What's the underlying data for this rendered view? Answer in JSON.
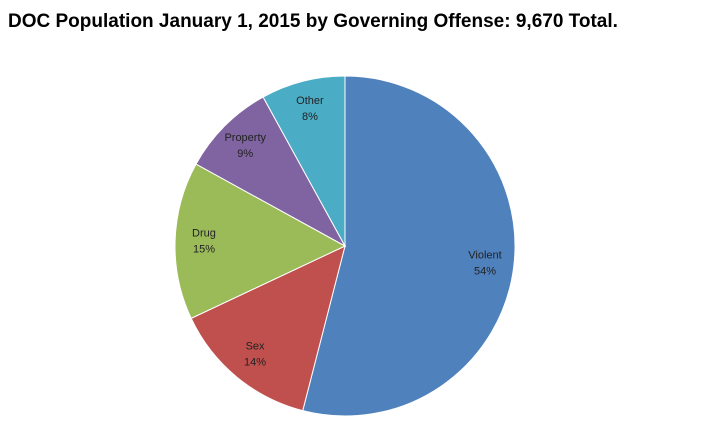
{
  "chart_data": {
    "type": "pie",
    "title": "DOC Population January 1, 2015 by Governing Offense: 9,670 Total.",
    "categories": [
      "Violent",
      "Sex",
      "Drug",
      "Property",
      "Other"
    ],
    "values": [
      54,
      14,
      15,
      9,
      8
    ],
    "value_labels": [
      "54%",
      "14%",
      "15%",
      "9%",
      "8%"
    ],
    "colors": [
      "#4f81bd",
      "#c0504d",
      "#9bbb59",
      "#8064a2",
      "#4bacc6"
    ]
  }
}
